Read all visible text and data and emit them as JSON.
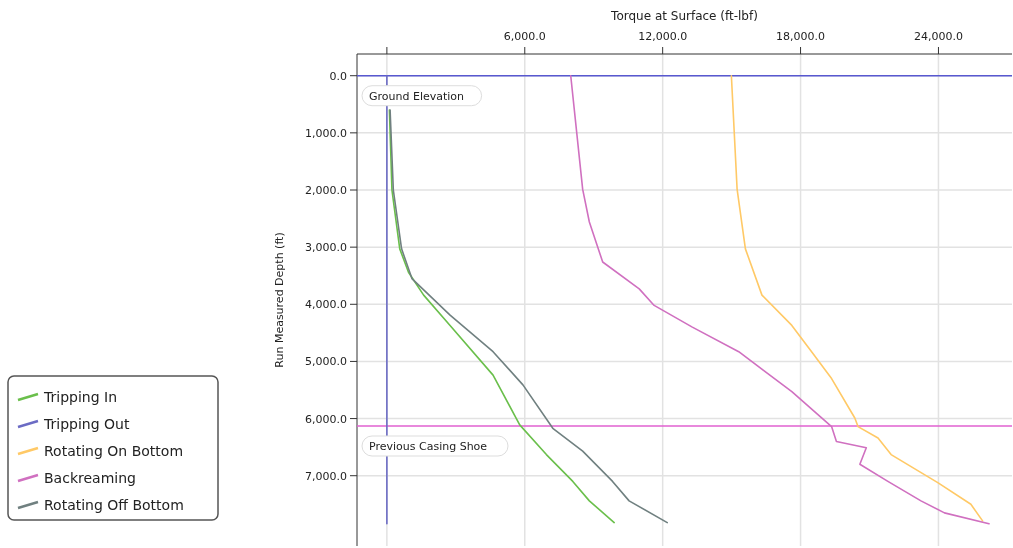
{
  "chart_data": {
    "type": "line",
    "xlabel": "Torque at Surface (ft-lbf)",
    "ylabel": "Run Measured Depth (ft)",
    "xlim": [
      -1300,
      27200
    ],
    "ylim": [
      8230,
      -380
    ],
    "xticks": [
      {
        "value": 0,
        "label": null
      },
      {
        "value": 6000,
        "label": "6,000.0"
      },
      {
        "value": 12000,
        "label": "12,000.0"
      },
      {
        "value": 18000,
        "label": "18,000.0"
      },
      {
        "value": 24000,
        "label": "24,000.0"
      }
    ],
    "yticks": [
      {
        "value": 0,
        "label": "0.0"
      },
      {
        "value": 1000,
        "label": "1,000.0"
      },
      {
        "value": 2000,
        "label": "2,000.0"
      },
      {
        "value": 3000,
        "label": "3,000.0"
      },
      {
        "value": 4000,
        "label": "4,000.0"
      },
      {
        "value": 5000,
        "label": "5,000.0"
      },
      {
        "value": 6000,
        "label": "6,000.0"
      },
      {
        "value": 7000,
        "label": "7,000.0"
      }
    ],
    "grid": true,
    "legend": "left",
    "line_style": "solid",
    "marker": "none",
    "ref_lines": [
      {
        "axis": "y",
        "value": 0,
        "label": "Ground Elevation",
        "color": "#5858d0"
      },
      {
        "axis": "y",
        "value": 6130,
        "label": "Previous Casing Shoe",
        "color": "#e060d0"
      }
    ],
    "series": [
      {
        "name": "Tripping In",
        "color": "#6abf4b",
        "x": [
          110,
          220,
          560,
          940,
          1600,
          2750,
          4620,
          5780,
          6940,
          8090,
          8810,
          9890
        ],
        "values": [
          600,
          2000,
          3030,
          3440,
          3840,
          4370,
          5240,
          6110,
          6630,
          7100,
          7440,
          7820
        ]
      },
      {
        "name": "Tripping Out",
        "color": "#6b6bc4",
        "x": [
          0,
          0
        ],
        "values": [
          0,
          7840
        ]
      },
      {
        "name": "Rotating On Bottom",
        "color": "#ffc966",
        "x": [
          14990,
          15240,
          15600,
          16320,
          17620,
          18480,
          19350,
          20360,
          20500,
          21370,
          21940,
          23970,
          25410,
          25920
        ],
        "values": [
          0,
          1990,
          3030,
          3840,
          4370,
          4830,
          5300,
          5990,
          6140,
          6340,
          6630,
          7120,
          7500,
          7790
        ]
      },
      {
        "name": "Backreaming",
        "color": "#d070c0",
        "x": [
          8000,
          8520,
          8810,
          9390,
          10980,
          11630,
          13290,
          15310,
          17620,
          19350,
          19560,
          20860,
          20580,
          21800,
          23240,
          24260,
          26200
        ],
        "values": [
          0,
          1990,
          2560,
          3260,
          3730,
          4020,
          4400,
          4830,
          5530,
          6140,
          6400,
          6510,
          6800,
          7100,
          7440,
          7650,
          7840
        ]
      },
      {
        "name": "Rotating Off Bottom",
        "color": "#708080",
        "x": [
          140,
          280,
          640,
          1090,
          2750,
          4620,
          5920,
          7220,
          8520,
          9820,
          10540,
          12200
        ],
        "values": [
          600,
          2000,
          3030,
          3550,
          4190,
          4830,
          5410,
          6170,
          6570,
          7100,
          7440,
          7820
        ]
      }
    ]
  }
}
